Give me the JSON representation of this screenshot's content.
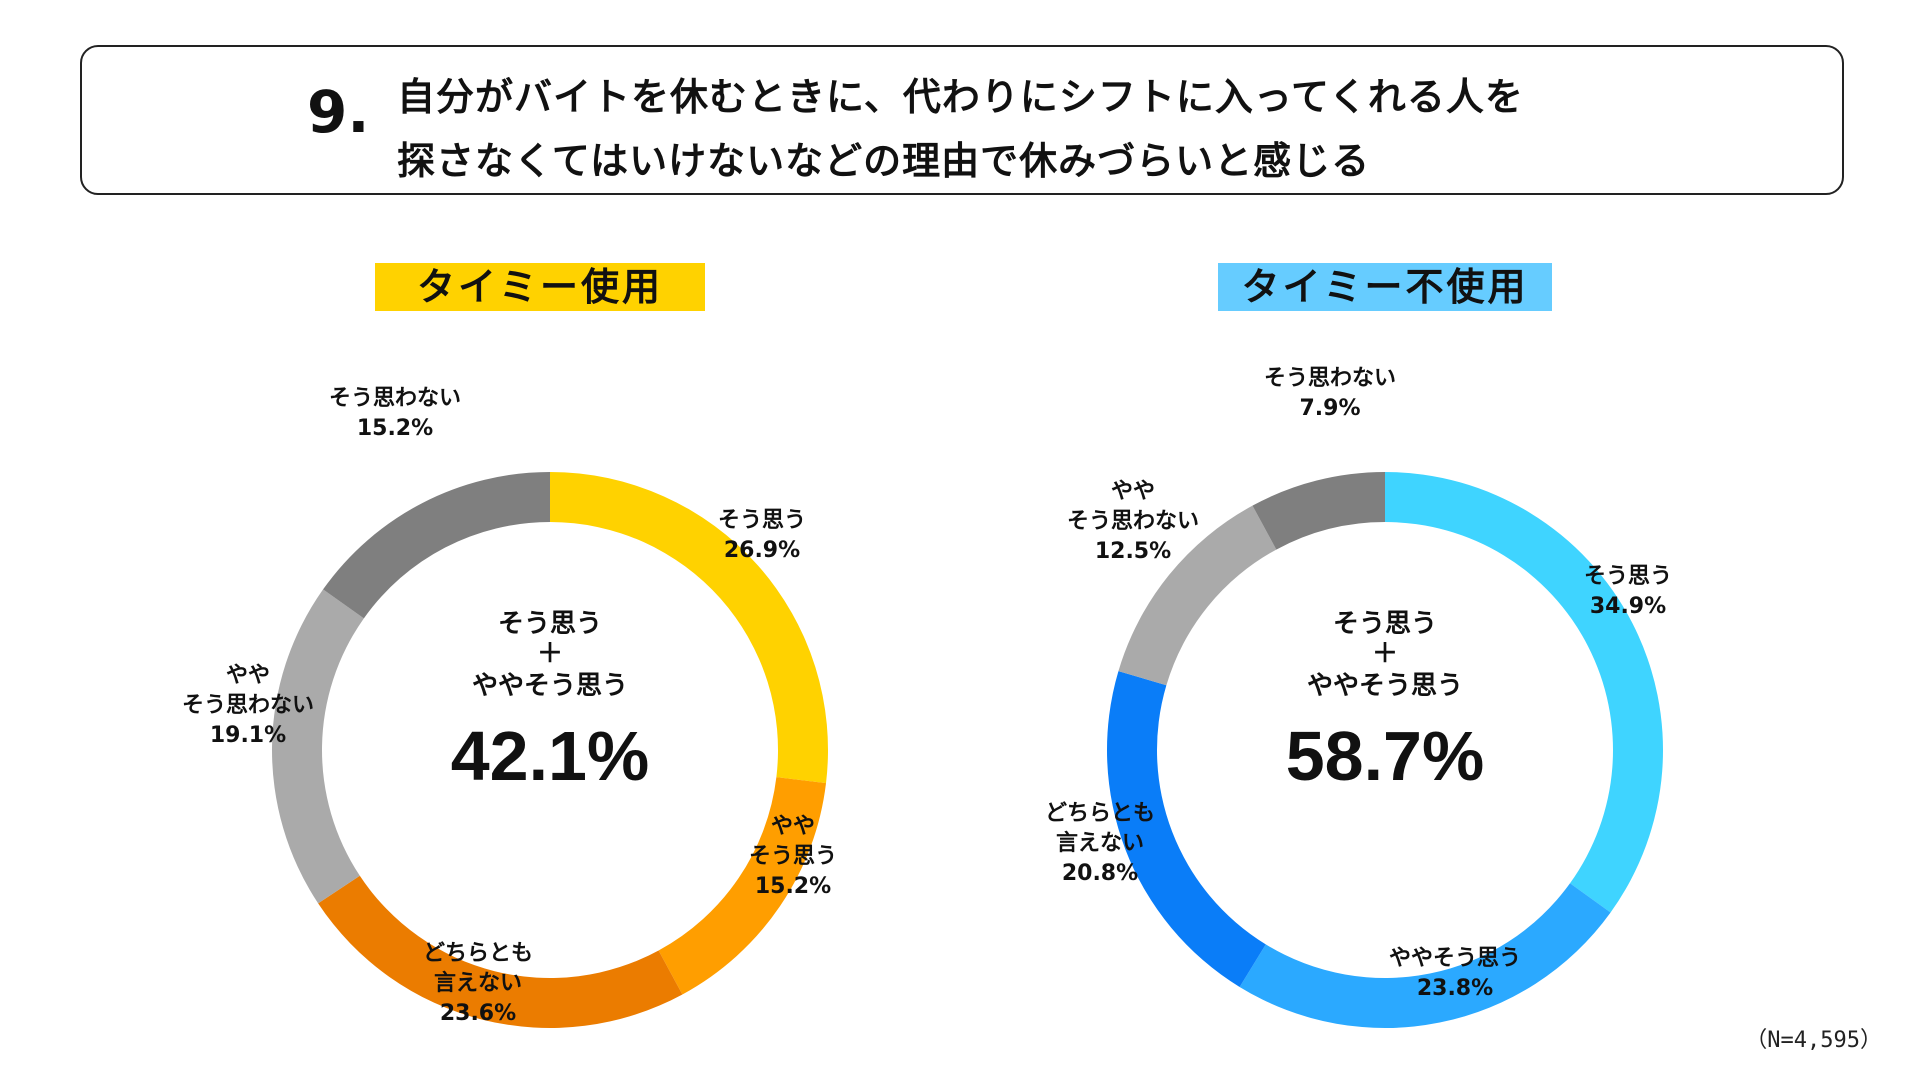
{
  "question": {
    "number": "9.",
    "line1": "自分がバイトを休むときに、代わりにシフトに入ってくれる人を",
    "line2": "探さなくてはいけないなどの理由で休みづらいと感じる"
  },
  "note": "（N=4,595）",
  "colors": {
    "timee_heading": "#FFD200",
    "non_timee_heading": "#66CCFF"
  },
  "chart_data": [
    {
      "type": "pie",
      "subtype": "donut",
      "title": "タイミー使用",
      "center": {
        "line1": "そう思う",
        "line2": "＋",
        "line3": "ややそう思う",
        "value": "42.1%"
      },
      "slices": [
        {
          "label": [
            "そう思う"
          ],
          "value": 26.9,
          "value_label": "26.9%",
          "color": "#FFD200"
        },
        {
          "label": [
            "やや",
            "そう思う"
          ],
          "value": 15.2,
          "value_label": "15.2%",
          "color": "#FF9E00"
        },
        {
          "label": [
            "どちらとも",
            "言えない"
          ],
          "value": 23.6,
          "value_label": "23.6%",
          "color": "#EB7C00"
        },
        {
          "label": [
            "やや",
            "そう思わない"
          ],
          "value": 19.1,
          "value_label": "19.1%",
          "color": "#AAAAAA"
        },
        {
          "label": [
            "そう思わない"
          ],
          "value": 15.2,
          "value_label": "15.2%",
          "color": "#7F7F7F"
        }
      ]
    },
    {
      "type": "pie",
      "subtype": "donut",
      "title": "タイミー不使用",
      "center": {
        "line1": "そう思う",
        "line2": "＋",
        "line3": "ややそう思う",
        "value": "58.7%"
      },
      "slices": [
        {
          "label": [
            "そう思う"
          ],
          "value": 34.9,
          "value_label": "34.9%",
          "color": "#3FD4FF"
        },
        {
          "label": [
            "ややそう思う"
          ],
          "value": 23.8,
          "value_label": "23.8%",
          "color": "#2BA9FF"
        },
        {
          "label": [
            "どちらとも",
            "言えない"
          ],
          "value": 20.8,
          "value_label": "20.8%",
          "color": "#0A7DF8"
        },
        {
          "label": [
            "やや",
            "そう思わない"
          ],
          "value": 12.5,
          "value_label": "12.5%",
          "color": "#AAAAAA"
        },
        {
          "label": [
            "そう思わない"
          ],
          "value": 7.9,
          "value_label": "7.9%",
          "color": "#7F7F7F"
        }
      ]
    }
  ]
}
